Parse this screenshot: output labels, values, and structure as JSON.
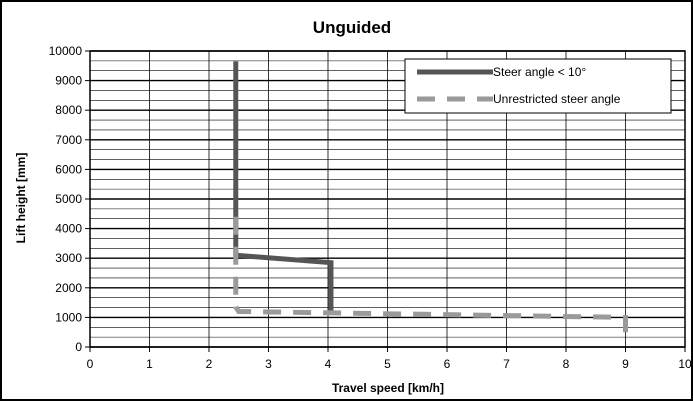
{
  "chart_data": {
    "type": "line",
    "title": "Unguided",
    "xlabel": "Travel speed [km/h]",
    "ylabel": "Lift height [mm]",
    "xlim": [
      0,
      10
    ],
    "ylim": [
      0,
      10000
    ],
    "xticks": [
      0,
      1,
      2,
      3,
      4,
      5,
      6,
      7,
      8,
      9,
      10
    ],
    "yticks": [
      0,
      1000,
      2000,
      3000,
      4000,
      5000,
      6000,
      7000,
      8000,
      9000,
      10000
    ],
    "grid": true,
    "legend_position": "top-right",
    "series": [
      {
        "name": "Steer angle < 10°",
        "color": "#555555",
        "style": "solid",
        "points": [
          [
            2.45,
            9650
          ],
          [
            2.45,
            3100
          ],
          [
            4.05,
            2850
          ],
          [
            4.05,
            1100
          ]
        ]
      },
      {
        "name": "Unrestricted steer angle",
        "color": "#9a9a9a",
        "style": "dashed",
        "points": [
          [
            2.45,
            4400
          ],
          [
            2.45,
            1350
          ],
          [
            2.5,
            1200
          ],
          [
            9.0,
            1000
          ],
          [
            9.0,
            500
          ]
        ]
      }
    ]
  },
  "colors": {
    "frame": "#000000",
    "background": "#ffffff"
  }
}
